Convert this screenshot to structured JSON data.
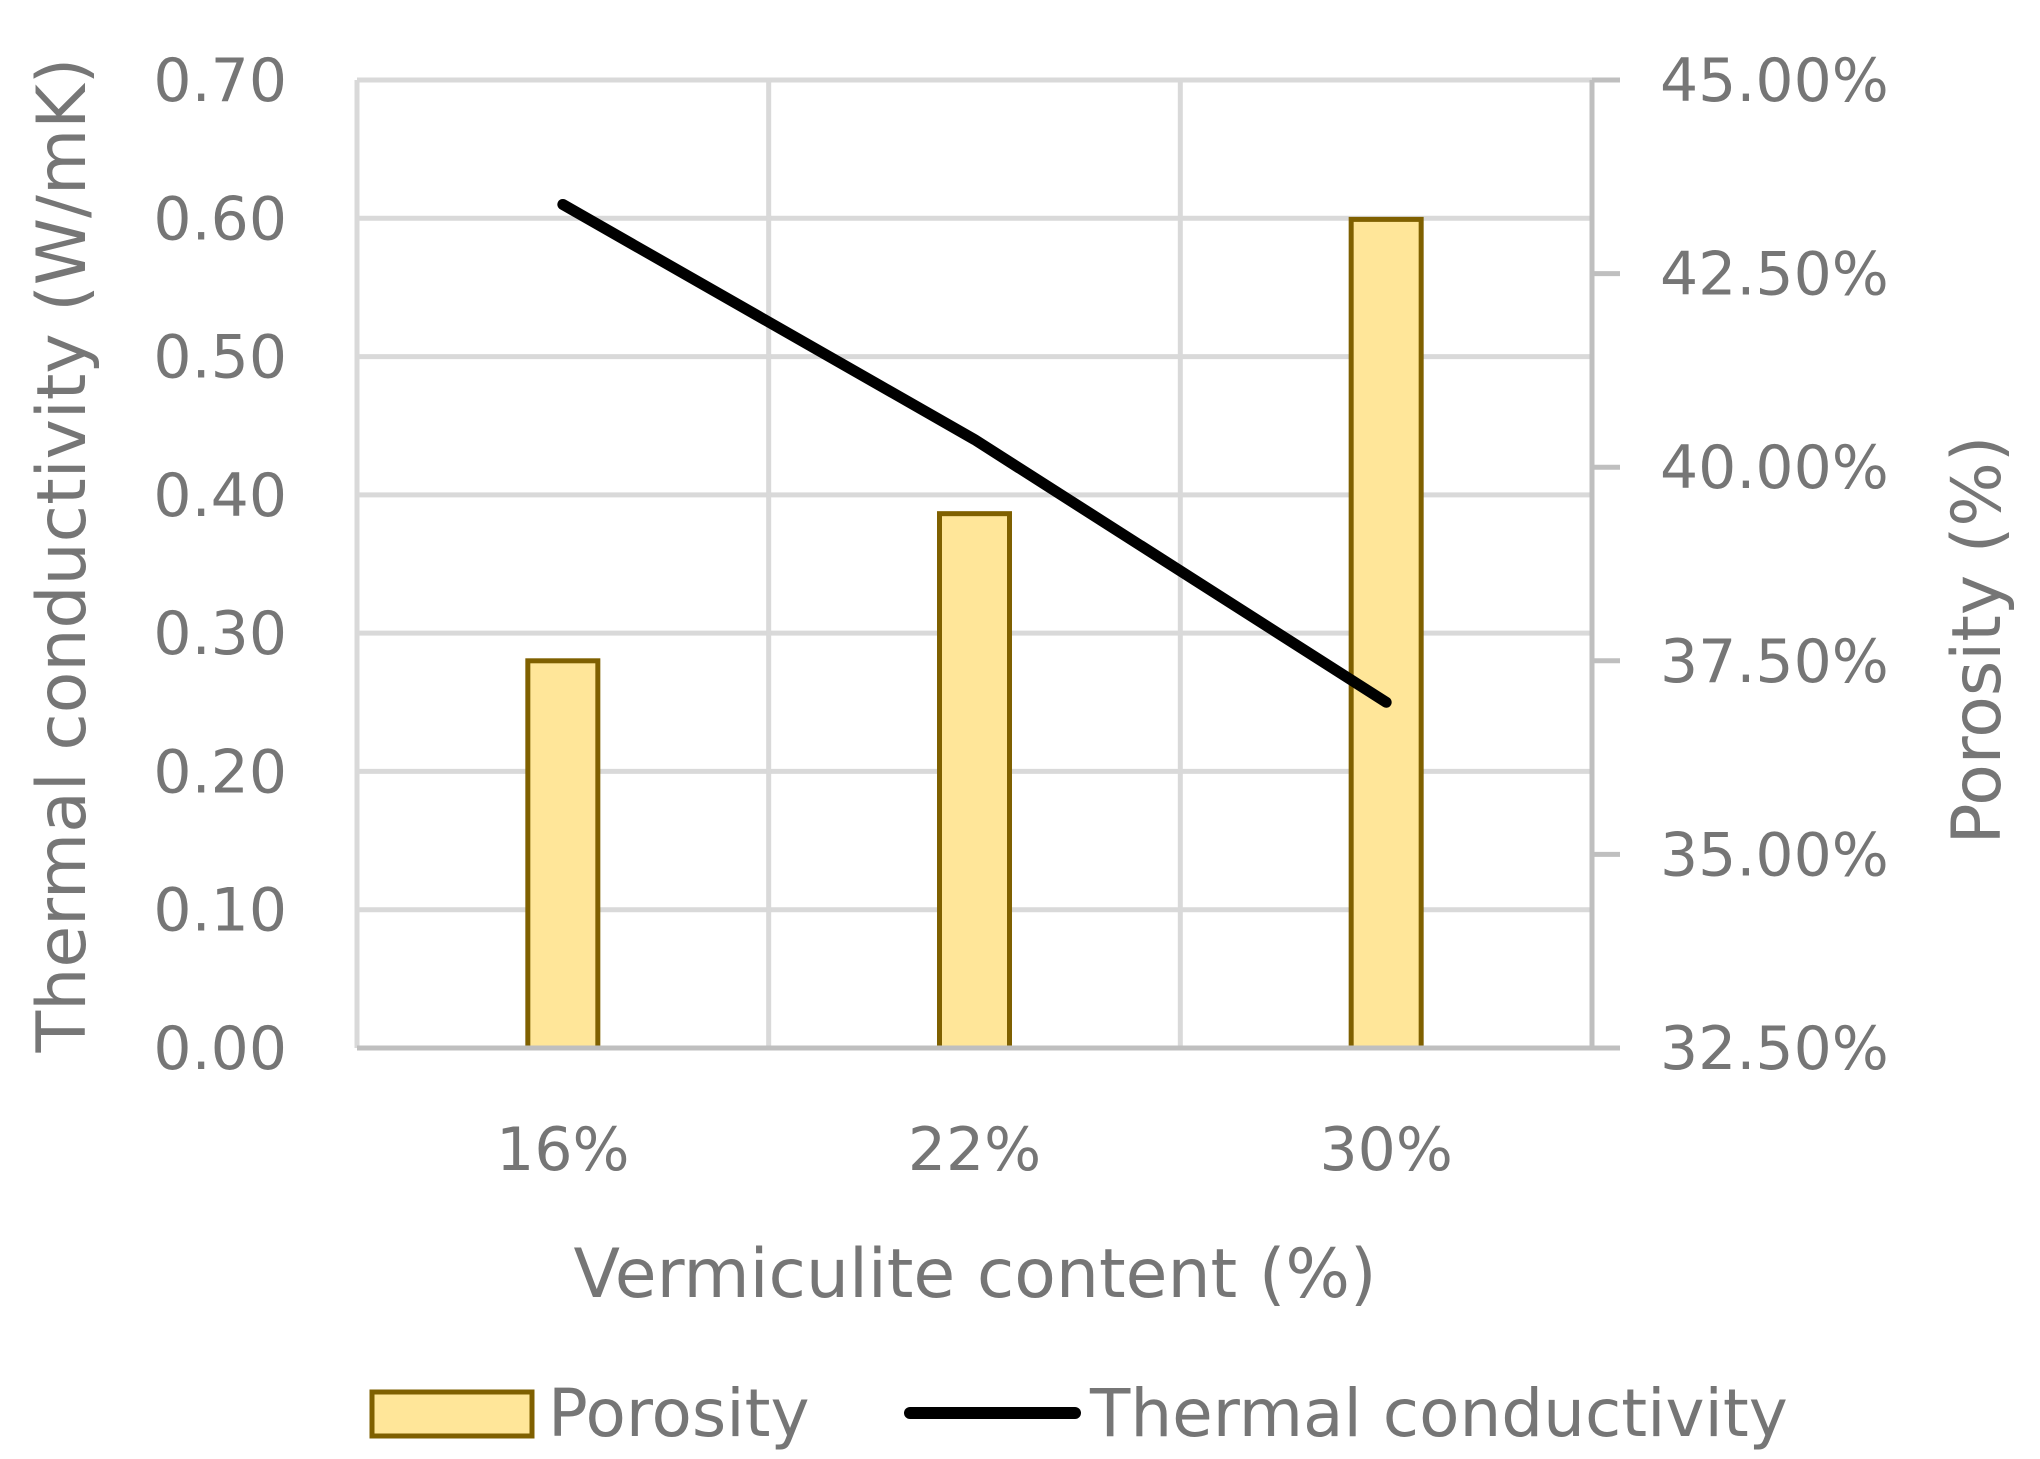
{
  "chart_data": {
    "type": "bar",
    "categories": [
      "16%",
      "22%",
      "30%"
    ],
    "xlabel": "Vermiculite content (%)",
    "ylabel": "Thermal conductivity (W/mK)",
    "y2label": "Porosity (%)",
    "ylim": [
      0,
      0.7
    ],
    "y_ticks": [
      "0.00",
      "0.10",
      "0.20",
      "0.30",
      "0.40",
      "0.50",
      "0.60",
      "0.70"
    ],
    "y2lim": [
      0.325,
      0.45
    ],
    "y2_ticks": [
      "32.50%",
      "35.00%",
      "37.50%",
      "40.00%",
      "42.50%",
      "45.00%"
    ],
    "grid": true,
    "legend_position": "bottom",
    "series": [
      {
        "name": "Porosity",
        "type": "bar",
        "axis": "right",
        "values": [
          0.375,
          0.394,
          0.432
        ],
        "fill": "#FFE699",
        "stroke": "#7F6000"
      },
      {
        "name": "Thermal conductivity",
        "type": "line",
        "axis": "left",
        "values": [
          0.61,
          0.44,
          0.25
        ],
        "stroke": "#000000"
      }
    ]
  }
}
